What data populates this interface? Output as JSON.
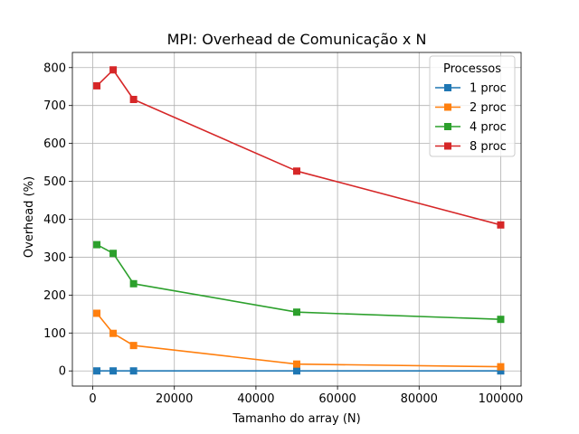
{
  "chart_data": {
    "type": "line",
    "title": "MPI: Overhead de Comunicação x N",
    "xlabel": "Tamanho do array (N)",
    "ylabel": "Overhead (%)",
    "xlim": [
      -5000,
      105000
    ],
    "ylim": [
      -40,
      840
    ],
    "xticks": [
      0,
      20000,
      40000,
      60000,
      80000,
      100000
    ],
    "yticks": [
      0,
      100,
      200,
      300,
      400,
      500,
      600,
      700,
      800
    ],
    "grid": true,
    "legend": {
      "title": "Processos",
      "position": "top-right"
    },
    "x": [
      1000,
      5000,
      10000,
      50000,
      100000
    ],
    "series": [
      {
        "name": "1 proc",
        "color": "#1f77b4",
        "marker": "square",
        "values": [
          0,
          0,
          0,
          0,
          0
        ]
      },
      {
        "name": "2 proc",
        "color": "#ff7f0e",
        "marker": "square",
        "values": [
          152,
          99,
          67,
          18,
          11
        ]
      },
      {
        "name": "4 proc",
        "color": "#2ca02c",
        "marker": "square",
        "values": [
          333,
          310,
          230,
          155,
          136
        ]
      },
      {
        "name": "8 proc",
        "color": "#d62728",
        "marker": "square",
        "values": [
          752,
          794,
          716,
          527,
          385
        ]
      }
    ]
  }
}
